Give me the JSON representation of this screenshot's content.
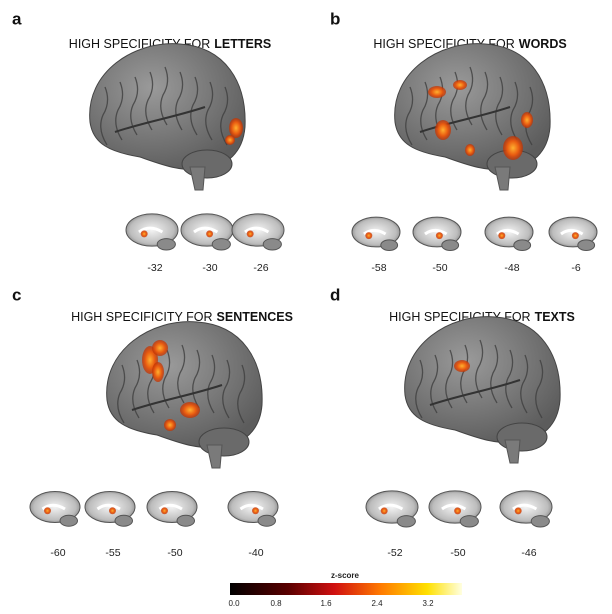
{
  "panels": [
    {
      "letter": "a",
      "title_prefix": "HIGH SPECIFICITY FOR",
      "title_bold": "LETTERS",
      "slices": [
        "-32",
        "-30",
        "-26"
      ]
    },
    {
      "letter": "b",
      "title_prefix": "HIGH SPECIFICITY FOR",
      "title_bold": "WORDS",
      "slices": [
        "-58",
        "-50",
        "-48",
        "-6"
      ]
    },
    {
      "letter": "c",
      "title_prefix": "HIGH SPECIFICITY FOR",
      "title_bold": "SENTENCES",
      "slices": [
        "-60",
        "-55",
        "-50",
        "-40"
      ]
    },
    {
      "letter": "d",
      "title_prefix": "HIGH SPECIFICITY FOR",
      "title_bold": "TEXTS",
      "slices": [
        "-52",
        "-50",
        "-46"
      ]
    }
  ],
  "colorbar": {
    "label": "z-score",
    "ticks": [
      "0.0",
      "0.8",
      "1.6",
      "2.4",
      "3.2"
    ]
  }
}
